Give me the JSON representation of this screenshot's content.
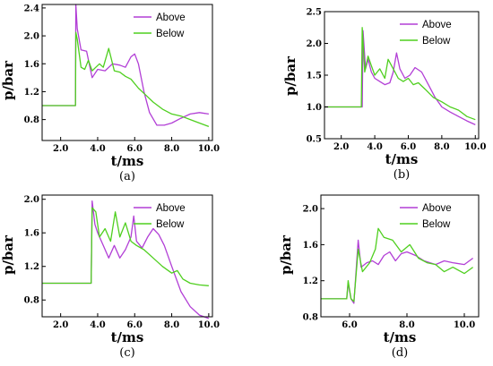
{
  "colors": {
    "above": "#b23fd6",
    "below": "#4fcf1f"
  },
  "chart_data": [
    {
      "type": "line",
      "panel_label": "(a)",
      "xlabel": "t/ms",
      "ylabel": "p/bar",
      "xlim": [
        1.0,
        10.2
      ],
      "ylim": [
        0.5,
        2.45
      ],
      "xticks": [
        2.0,
        4.0,
        6.0,
        8.0,
        10.0
      ],
      "xtick_labels": [
        "2.0",
        "4.0",
        "6.0",
        "8.0",
        "10.0"
      ],
      "yticks": [
        0.8,
        1.2,
        1.6,
        2.0,
        2.4
      ],
      "ytick_labels": [
        "0.8",
        "1.2",
        "1.6",
        "2.0",
        "2.4"
      ],
      "legend": "top-right",
      "series": [
        {
          "name": "Above",
          "color_key": "above",
          "x": [
            1.0,
            2.8,
            2.82,
            2.9,
            3.1,
            3.4,
            3.7,
            4.0,
            4.4,
            4.8,
            5.2,
            5.5,
            5.8,
            6.0,
            6.2,
            6.5,
            6.8,
            7.2,
            7.6,
            8.0,
            8.5,
            9.0,
            9.5,
            10.0
          ],
          "y": [
            1.0,
            1.0,
            2.45,
            2.1,
            1.8,
            1.78,
            1.4,
            1.52,
            1.5,
            1.6,
            1.58,
            1.55,
            1.7,
            1.74,
            1.6,
            1.2,
            0.9,
            0.72,
            0.72,
            0.75,
            0.82,
            0.88,
            0.9,
            0.88
          ]
        },
        {
          "name": "Below",
          "color_key": "below",
          "x": [
            1.0,
            2.8,
            2.82,
            2.9,
            3.1,
            3.3,
            3.5,
            3.7,
            3.9,
            4.1,
            4.3,
            4.6,
            4.9,
            5.2,
            5.5,
            5.8,
            6.2,
            6.6,
            7.0,
            7.5,
            8.0,
            8.5,
            9.0,
            9.5,
            10.0
          ],
          "y": [
            1.0,
            1.0,
            2.05,
            1.95,
            1.55,
            1.52,
            1.65,
            1.5,
            1.55,
            1.6,
            1.55,
            1.82,
            1.5,
            1.48,
            1.42,
            1.38,
            1.25,
            1.15,
            1.05,
            0.95,
            0.88,
            0.85,
            0.8,
            0.75,
            0.7
          ]
        }
      ]
    },
    {
      "type": "line",
      "panel_label": "(b)",
      "xlabel": "t/ms",
      "ylabel": "p/bar",
      "xlim": [
        1.0,
        10.2
      ],
      "ylim": [
        0.5,
        2.5
      ],
      "xticks": [
        2.0,
        4.0,
        6.0,
        8.0,
        10.0
      ],
      "xtick_labels": [
        "2.0",
        "4.0",
        "6.0",
        "8.0",
        "10.0"
      ],
      "yticks": [
        0.5,
        1.0,
        1.5,
        2.0,
        2.5
      ],
      "ytick_labels": [
        "0.5",
        "1.0",
        "1.5",
        "2.0",
        "2.5"
      ],
      "legend": "top-right",
      "series": [
        {
          "name": "Above",
          "color_key": "above",
          "x": [
            1.0,
            3.25,
            3.3,
            3.45,
            3.6,
            3.8,
            4.0,
            4.3,
            4.6,
            4.9,
            5.1,
            5.3,
            5.5,
            5.8,
            6.1,
            6.4,
            6.8,
            7.2,
            7.6,
            8.0,
            8.5,
            9.0,
            9.5,
            10.0
          ],
          "y": [
            1.0,
            1.0,
            2.2,
            1.6,
            1.75,
            1.55,
            1.45,
            1.4,
            1.35,
            1.38,
            1.55,
            1.85,
            1.6,
            1.45,
            1.5,
            1.62,
            1.55,
            1.35,
            1.15,
            1.0,
            0.92,
            0.85,
            0.78,
            0.72
          ]
        },
        {
          "name": "Below",
          "color_key": "below",
          "x": [
            1.0,
            3.2,
            3.25,
            3.4,
            3.6,
            3.8,
            4.0,
            4.3,
            4.6,
            4.8,
            5.1,
            5.4,
            5.7,
            6.0,
            6.3,
            6.6,
            7.0,
            7.5,
            8.0,
            8.5,
            9.0,
            9.5,
            10.0
          ],
          "y": [
            1.0,
            1.0,
            2.25,
            1.55,
            1.8,
            1.65,
            1.5,
            1.6,
            1.45,
            1.75,
            1.6,
            1.45,
            1.4,
            1.45,
            1.35,
            1.38,
            1.28,
            1.15,
            1.08,
            1.0,
            0.95,
            0.85,
            0.8
          ]
        }
      ]
    },
    {
      "type": "line",
      "panel_label": "(c)",
      "xlabel": "t/ms",
      "ylabel": "p/bar",
      "xlim": [
        1.0,
        10.2
      ],
      "ylim": [
        0.6,
        2.05
      ],
      "xticks": [
        2.0,
        4.0,
        6.0,
        8.0,
        10.0
      ],
      "xtick_labels": [
        "2.0",
        "4.0",
        "6.0",
        "8.0",
        "10.0"
      ],
      "yticks": [
        0.8,
        1.2,
        1.6,
        2.0
      ],
      "ytick_labels": [
        "0.8",
        "1.2",
        "1.6",
        "2.0"
      ],
      "legend": "top-right",
      "series": [
        {
          "name": "Above",
          "color_key": "above",
          "x": [
            1.0,
            3.65,
            3.7,
            3.85,
            4.0,
            4.3,
            4.6,
            4.9,
            5.2,
            5.5,
            5.8,
            5.95,
            6.1,
            6.4,
            6.7,
            7.0,
            7.3,
            7.6,
            8.0,
            8.5,
            9.0,
            9.5,
            10.0
          ],
          "y": [
            1.0,
            1.0,
            1.98,
            1.7,
            1.6,
            1.45,
            1.3,
            1.45,
            1.3,
            1.4,
            1.55,
            1.8,
            1.5,
            1.42,
            1.55,
            1.65,
            1.58,
            1.45,
            1.2,
            0.9,
            0.72,
            0.62,
            0.58
          ]
        },
        {
          "name": "Below",
          "color_key": "below",
          "x": [
            1.0,
            3.65,
            3.7,
            3.9,
            4.1,
            4.4,
            4.7,
            4.95,
            5.2,
            5.5,
            5.8,
            6.1,
            6.5,
            7.0,
            7.5,
            8.0,
            8.3,
            8.6,
            9.0,
            9.5,
            10.0
          ],
          "y": [
            1.0,
            1.0,
            1.9,
            1.85,
            1.55,
            1.65,
            1.5,
            1.85,
            1.55,
            1.72,
            1.5,
            1.45,
            1.4,
            1.3,
            1.2,
            1.12,
            1.15,
            1.05,
            1.0,
            0.98,
            0.97
          ]
        }
      ]
    },
    {
      "type": "line",
      "panel_label": "(d)",
      "xlabel": "t/ms",
      "ylabel": "p/bar",
      "xlim": [
        5.0,
        10.5
      ],
      "ylim": [
        0.8,
        2.15
      ],
      "xticks": [
        6.0,
        8.0,
        10.0
      ],
      "xtick_labels": [
        "6.0",
        "8.0",
        "10.0"
      ],
      "yticks": [
        0.8,
        1.2,
        1.6,
        2.0
      ],
      "ytick_labels": [
        "0.8",
        "1.2",
        "1.6",
        "2.0"
      ],
      "legend": "top-right",
      "series": [
        {
          "name": "Above",
          "color_key": "above",
          "x": [
            5.0,
            5.9,
            5.95,
            6.05,
            6.15,
            6.3,
            6.4,
            6.6,
            6.8,
            7.0,
            7.2,
            7.4,
            7.6,
            7.8,
            8.0,
            8.3,
            8.6,
            9.0,
            9.3,
            9.6,
            10.0,
            10.3
          ],
          "y": [
            1.0,
            1.0,
            1.17,
            1.0,
            0.95,
            1.65,
            1.35,
            1.4,
            1.42,
            1.38,
            1.48,
            1.52,
            1.42,
            1.5,
            1.52,
            1.48,
            1.42,
            1.38,
            1.42,
            1.4,
            1.38,
            1.45
          ]
        },
        {
          "name": "Below",
          "color_key": "below",
          "x": [
            5.0,
            5.9,
            5.95,
            6.05,
            6.15,
            6.3,
            6.45,
            6.7,
            6.9,
            7.0,
            7.2,
            7.5,
            7.8,
            8.1,
            8.4,
            8.7,
            9.0,
            9.3,
            9.6,
            10.0,
            10.3
          ],
          "y": [
            1.0,
            1.0,
            1.2,
            1.0,
            0.97,
            1.55,
            1.3,
            1.4,
            1.55,
            1.78,
            1.68,
            1.65,
            1.52,
            1.6,
            1.45,
            1.4,
            1.38,
            1.3,
            1.35,
            1.28,
            1.35
          ]
        }
      ]
    }
  ]
}
